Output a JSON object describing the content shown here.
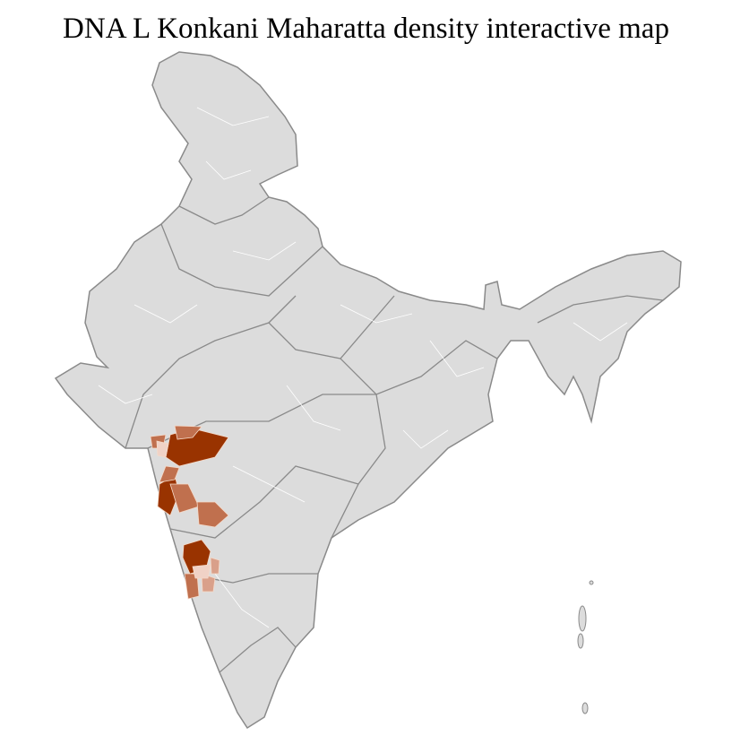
{
  "title": "DNA L Konkani Maharatta density interactive map",
  "colors": {
    "land": "#dcdcdc",
    "state_border": "#8a8a8a",
    "district_border": "#ffffff",
    "density_high": "#993300",
    "density_mid": "#c0704e",
    "density_low": "#d9a08a",
    "density_faint": "#f0d2c6"
  }
}
